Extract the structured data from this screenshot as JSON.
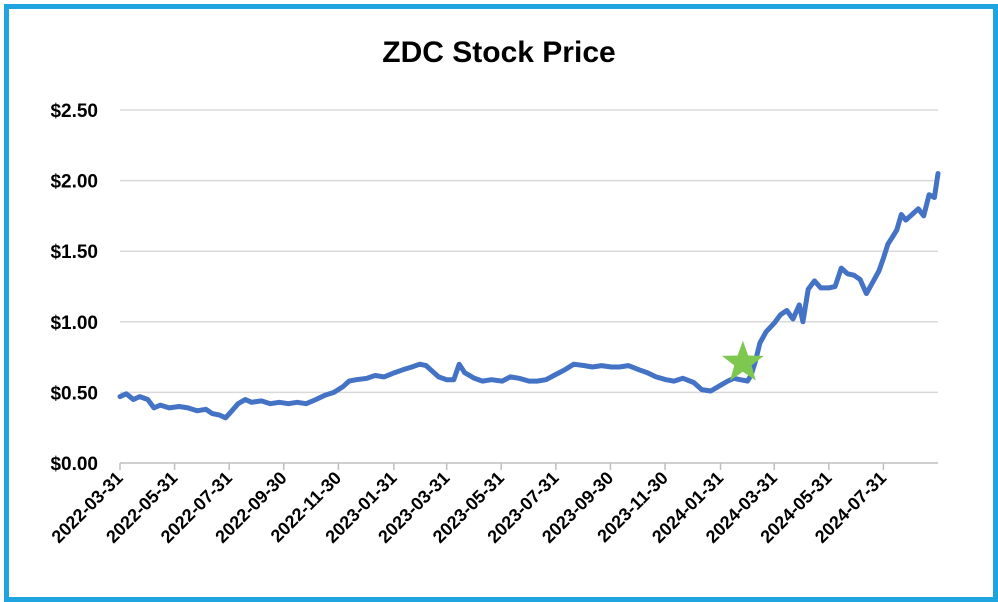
{
  "chart_data": {
    "type": "line",
    "title": "ZDC Stock Price",
    "xlabel": "",
    "ylabel": "",
    "ylim": [
      0,
      2.5
    ],
    "yticks": [
      0,
      0.5,
      1.0,
      1.5,
      2.0,
      2.5
    ],
    "ytick_labels": [
      "$0.00",
      "$0.50",
      "$1.00",
      "$1.50",
      "$2.00",
      "$2.50"
    ],
    "xlim": [
      "2022-03-31",
      "2024-09-30"
    ],
    "xtick_labels": [
      "2022-03-31",
      "2022-05-31",
      "2022-07-31",
      "2022-09-30",
      "2022-11-30",
      "2023-01-31",
      "2023-03-31",
      "2023-05-31",
      "2023-07-31",
      "2023-09-30",
      "2023-11-30",
      "2024-01-31",
      "2024-03-31",
      "2024-05-31",
      "2024-07-31"
    ],
    "grid": true,
    "line_color": "#4472c4",
    "series": [
      {
        "points": [
          [
            "2022-03-31",
            0.47
          ],
          [
            "2022-04-07",
            0.49
          ],
          [
            "2022-04-15",
            0.45
          ],
          [
            "2022-04-22",
            0.47
          ],
          [
            "2022-05-01",
            0.45
          ],
          [
            "2022-05-08",
            0.39
          ],
          [
            "2022-05-15",
            0.41
          ],
          [
            "2022-05-25",
            0.39
          ],
          [
            "2022-06-05",
            0.4
          ],
          [
            "2022-06-15",
            0.39
          ],
          [
            "2022-06-25",
            0.37
          ],
          [
            "2022-07-05",
            0.38
          ],
          [
            "2022-07-12",
            0.35
          ],
          [
            "2022-07-20",
            0.34
          ],
          [
            "2022-07-27",
            0.32
          ],
          [
            "2022-08-03",
            0.37
          ],
          [
            "2022-08-10",
            0.42
          ],
          [
            "2022-08-18",
            0.45
          ],
          [
            "2022-08-25",
            0.43
          ],
          [
            "2022-09-05",
            0.44
          ],
          [
            "2022-09-15",
            0.42
          ],
          [
            "2022-09-25",
            0.43
          ],
          [
            "2022-10-05",
            0.42
          ],
          [
            "2022-10-15",
            0.43
          ],
          [
            "2022-10-25",
            0.42
          ],
          [
            "2022-11-05",
            0.45
          ],
          [
            "2022-11-15",
            0.48
          ],
          [
            "2022-11-25",
            0.5
          ],
          [
            "2022-12-05",
            0.54
          ],
          [
            "2022-12-12",
            0.58
          ],
          [
            "2022-12-20",
            0.59
          ],
          [
            "2023-01-01",
            0.6
          ],
          [
            "2023-01-10",
            0.62
          ],
          [
            "2023-01-20",
            0.61
          ],
          [
            "2023-02-01",
            0.64
          ],
          [
            "2023-02-10",
            0.66
          ],
          [
            "2023-02-20",
            0.68
          ],
          [
            "2023-03-01",
            0.7
          ],
          [
            "2023-03-08",
            0.69
          ],
          [
            "2023-03-15",
            0.65
          ],
          [
            "2023-03-22",
            0.61
          ],
          [
            "2023-03-31",
            0.59
          ],
          [
            "2023-04-08",
            0.59
          ],
          [
            "2023-04-14",
            0.7
          ],
          [
            "2023-04-20",
            0.64
          ],
          [
            "2023-05-01",
            0.6
          ],
          [
            "2023-05-10",
            0.58
          ],
          [
            "2023-05-20",
            0.59
          ],
          [
            "2023-06-01",
            0.58
          ],
          [
            "2023-06-10",
            0.61
          ],
          [
            "2023-06-20",
            0.6
          ],
          [
            "2023-07-01",
            0.58
          ],
          [
            "2023-07-10",
            0.58
          ],
          [
            "2023-07-20",
            0.59
          ],
          [
            "2023-08-01",
            0.63
          ],
          [
            "2023-08-10",
            0.66
          ],
          [
            "2023-08-20",
            0.7
          ],
          [
            "2023-09-01",
            0.69
          ],
          [
            "2023-09-10",
            0.68
          ],
          [
            "2023-09-20",
            0.69
          ],
          [
            "2023-10-01",
            0.68
          ],
          [
            "2023-10-10",
            0.68
          ],
          [
            "2023-10-20",
            0.69
          ],
          [
            "2023-11-01",
            0.66
          ],
          [
            "2023-11-10",
            0.64
          ],
          [
            "2023-11-20",
            0.61
          ],
          [
            "2023-12-01",
            0.59
          ],
          [
            "2023-12-10",
            0.58
          ],
          [
            "2023-12-20",
            0.6
          ],
          [
            "2024-01-01",
            0.57
          ],
          [
            "2024-01-10",
            0.52
          ],
          [
            "2024-01-20",
            0.51
          ],
          [
            "2024-01-31",
            0.55
          ],
          [
            "2024-02-08",
            0.58
          ],
          [
            "2024-02-15",
            0.6
          ],
          [
            "2024-02-22",
            0.59
          ],
          [
            "2024-03-01",
            0.58
          ],
          [
            "2024-03-05",
            0.62
          ],
          [
            "2024-03-10",
            0.72
          ],
          [
            "2024-03-15",
            0.85
          ],
          [
            "2024-03-22",
            0.93
          ],
          [
            "2024-03-31",
            0.99
          ],
          [
            "2024-04-07",
            1.05
          ],
          [
            "2024-04-14",
            1.08
          ],
          [
            "2024-04-21",
            1.02
          ],
          [
            "2024-04-28",
            1.12
          ],
          [
            "2024-05-02",
            1.0
          ],
          [
            "2024-05-08",
            1.23
          ],
          [
            "2024-05-15",
            1.29
          ],
          [
            "2024-05-22",
            1.24
          ],
          [
            "2024-05-31",
            1.24
          ],
          [
            "2024-06-07",
            1.25
          ],
          [
            "2024-06-14",
            1.38
          ],
          [
            "2024-06-21",
            1.34
          ],
          [
            "2024-06-28",
            1.33
          ],
          [
            "2024-07-05",
            1.3
          ],
          [
            "2024-07-12",
            1.2
          ],
          [
            "2024-07-19",
            1.28
          ],
          [
            "2024-07-26",
            1.36
          ],
          [
            "2024-07-31",
            1.45
          ],
          [
            "2024-08-05",
            1.55
          ],
          [
            "2024-08-10",
            1.6
          ],
          [
            "2024-08-15",
            1.65
          ],
          [
            "2024-08-20",
            1.76
          ],
          [
            "2024-08-25",
            1.72
          ],
          [
            "2024-09-01",
            1.76
          ],
          [
            "2024-09-08",
            1.8
          ],
          [
            "2024-09-14",
            1.75
          ],
          [
            "2024-09-20",
            1.9
          ],
          [
            "2024-09-26",
            1.88
          ],
          [
            "2024-09-30",
            2.05
          ]
        ]
      }
    ],
    "marker": {
      "shape": "star",
      "date": "2024-02-25",
      "value": 0.71,
      "color": "#7ec850"
    }
  }
}
